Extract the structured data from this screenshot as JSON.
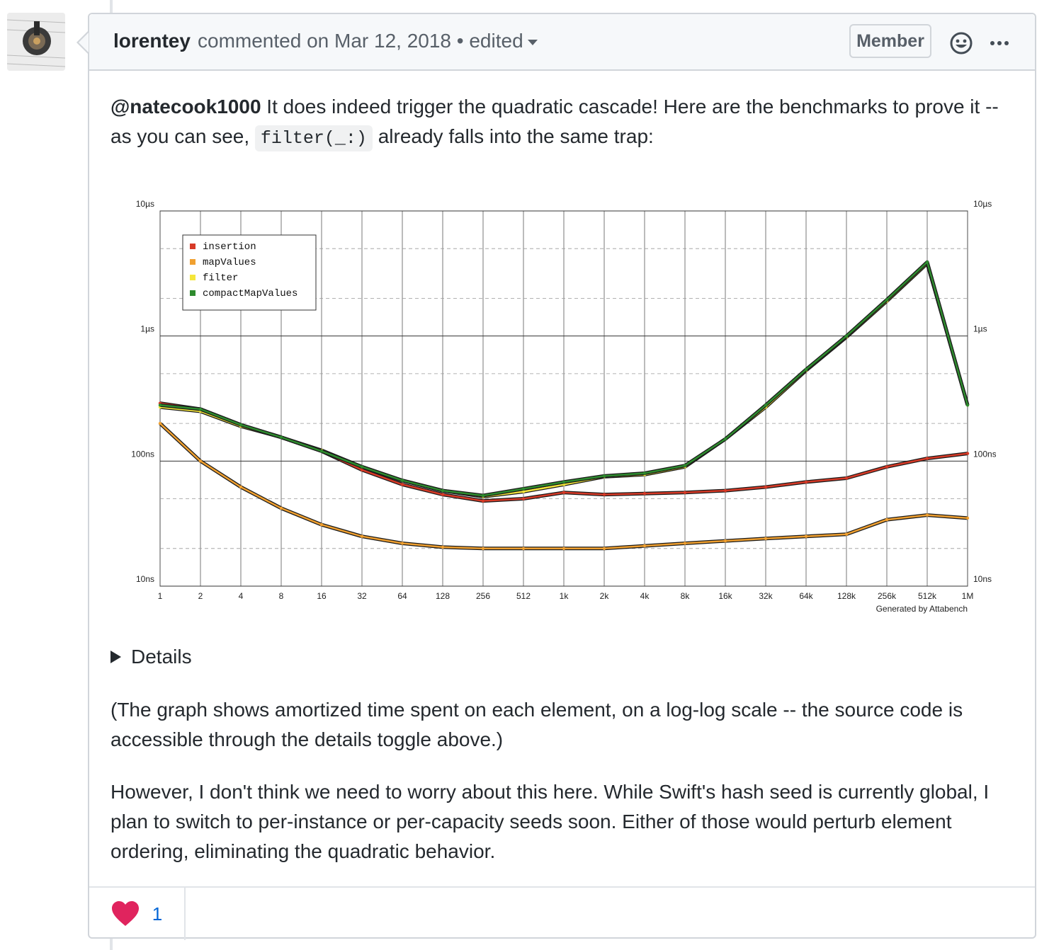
{
  "comment": {
    "author": "lorentey",
    "meta_text": "commented on Mar 12, 2018 • edited",
    "badge": "Member",
    "paragraph1_mention": "@natecook1000",
    "paragraph1_a": " It does indeed trigger the quadratic cascade! Here are the benchmarks to prove it -- as you can see, ",
    "paragraph1_code": "filter(_:)",
    "paragraph1_b": " already falls into the same trap:",
    "details_label": "Details",
    "paragraph2": "(The graph shows amortized time spent on each element, on a log-log scale -- the source code is accessible through the details toggle above.)",
    "paragraph3": "However, I don't think we need to worry about this here. While Swift's hash seed is currently global, I plan to switch to per-instance or per-capacity seeds soon. Either of those would perturb element ordering, eliminating the quadratic behavior.",
    "reaction": {
      "icon": "heart-icon",
      "count": "1",
      "color": "#e0245e"
    }
  },
  "icons": {
    "emoji": "smiley-icon",
    "more": "kebab-horizontal-icon",
    "details": "triangle-right-icon"
  },
  "chart_data": {
    "type": "line",
    "x_scale": "log2",
    "y_scale": "log10",
    "y_unit": "seconds",
    "xlim": [
      1,
      1048576
    ],
    "ylim": [
      1e-08,
      1e-05
    ],
    "x_tick_labels": [
      "1",
      "2",
      "4",
      "8",
      "16",
      "32",
      "64",
      "128",
      "256",
      "512",
      "1k",
      "2k",
      "4k",
      "8k",
      "16k",
      "32k",
      "64k",
      "128k",
      "256k",
      "512k",
      "1M"
    ],
    "y_tick_labels": [
      "10µs",
      "1µs",
      "100ns",
      "10ns"
    ],
    "y_tick_values": [
      1e-05,
      1e-06,
      1e-07,
      1e-08
    ],
    "footer": "Generated by Attabench",
    "legend_position": "top-left",
    "grid": true,
    "series": [
      {
        "name": "insertion",
        "color": "#d73a27",
        "points": [
          [
            1,
            2.9e-07
          ],
          [
            2,
            2.6e-07
          ],
          [
            4,
            1.95e-07
          ],
          [
            8,
            1.55e-07
          ],
          [
            16,
            1.2e-07
          ],
          [
            32,
            8.5e-08
          ],
          [
            64,
            6.5e-08
          ],
          [
            128,
            5.4e-08
          ],
          [
            256,
            4.8e-08
          ],
          [
            512,
            5e-08
          ],
          [
            1024,
            5.6e-08
          ],
          [
            2048,
            5.4e-08
          ],
          [
            4096,
            5.5e-08
          ],
          [
            8192,
            5.6e-08
          ],
          [
            16384,
            5.8e-08
          ],
          [
            32768,
            6.2e-08
          ],
          [
            65536,
            6.8e-08
          ],
          [
            131072,
            7.3e-08
          ],
          [
            262144,
            9e-08
          ],
          [
            524288,
            1.05e-07
          ],
          [
            1048576,
            1.15e-07
          ]
        ]
      },
      {
        "name": "mapValues",
        "color": "#f0a030",
        "points": [
          [
            1,
            2e-07
          ],
          [
            2,
            1e-07
          ],
          [
            4,
            6.2e-08
          ],
          [
            8,
            4.2e-08
          ],
          [
            16,
            3.1e-08
          ],
          [
            32,
            2.5e-08
          ],
          [
            64,
            2.2e-08
          ],
          [
            128,
            2.05e-08
          ],
          [
            256,
            2e-08
          ],
          [
            512,
            2e-08
          ],
          [
            1024,
            2e-08
          ],
          [
            2048,
            2e-08
          ],
          [
            4096,
            2.1e-08
          ],
          [
            8192,
            2.2e-08
          ],
          [
            16384,
            2.3e-08
          ],
          [
            32768,
            2.4e-08
          ],
          [
            65536,
            2.5e-08
          ],
          [
            131072,
            2.6e-08
          ],
          [
            262144,
            3.4e-08
          ],
          [
            524288,
            3.7e-08
          ],
          [
            1048576,
            3.5e-08
          ]
        ]
      },
      {
        "name": "filter",
        "color": "#f5e63a",
        "points": [
          [
            1,
            2.7e-07
          ],
          [
            2,
            2.5e-07
          ],
          [
            4,
            1.9e-07
          ],
          [
            8,
            1.55e-07
          ],
          [
            16,
            1.22e-07
          ],
          [
            32,
            9e-08
          ],
          [
            64,
            7e-08
          ],
          [
            128,
            5.8e-08
          ],
          [
            256,
            5.2e-08
          ],
          [
            512,
            5.7e-08
          ],
          [
            1024,
            6.5e-08
          ],
          [
            2048,
            7.5e-08
          ],
          [
            4096,
            7.8e-08
          ],
          [
            8192,
            9e-08
          ],
          [
            16384,
            1.5e-07
          ],
          [
            32768,
            2.7e-07
          ],
          [
            65536,
            5.3e-07
          ],
          [
            131072,
            9.8e-07
          ],
          [
            262144,
            1.9e-06
          ],
          [
            524288,
            3.8e-06
          ],
          [
            1048576,
            2.8e-07
          ]
        ]
      },
      {
        "name": "compactMapValues",
        "color": "#2e8b2e",
        "points": [
          [
            1,
            2.8e-07
          ],
          [
            2,
            2.6e-07
          ],
          [
            4,
            1.95e-07
          ],
          [
            8,
            1.55e-07
          ],
          [
            16,
            1.2e-07
          ],
          [
            32,
            9e-08
          ],
          [
            64,
            7e-08
          ],
          [
            128,
            5.8e-08
          ],
          [
            256,
            5.3e-08
          ],
          [
            512,
            6e-08
          ],
          [
            1024,
            6.8e-08
          ],
          [
            2048,
            7.6e-08
          ],
          [
            4096,
            8e-08
          ],
          [
            8192,
            9.2e-08
          ],
          [
            16384,
            1.5e-07
          ],
          [
            32768,
            2.8e-07
          ],
          [
            65536,
            5.4e-07
          ],
          [
            131072,
            1e-06
          ],
          [
            262144,
            1.95e-06
          ],
          [
            524288,
            3.9e-06
          ],
          [
            1048576,
            2.8e-07
          ]
        ]
      }
    ]
  }
}
